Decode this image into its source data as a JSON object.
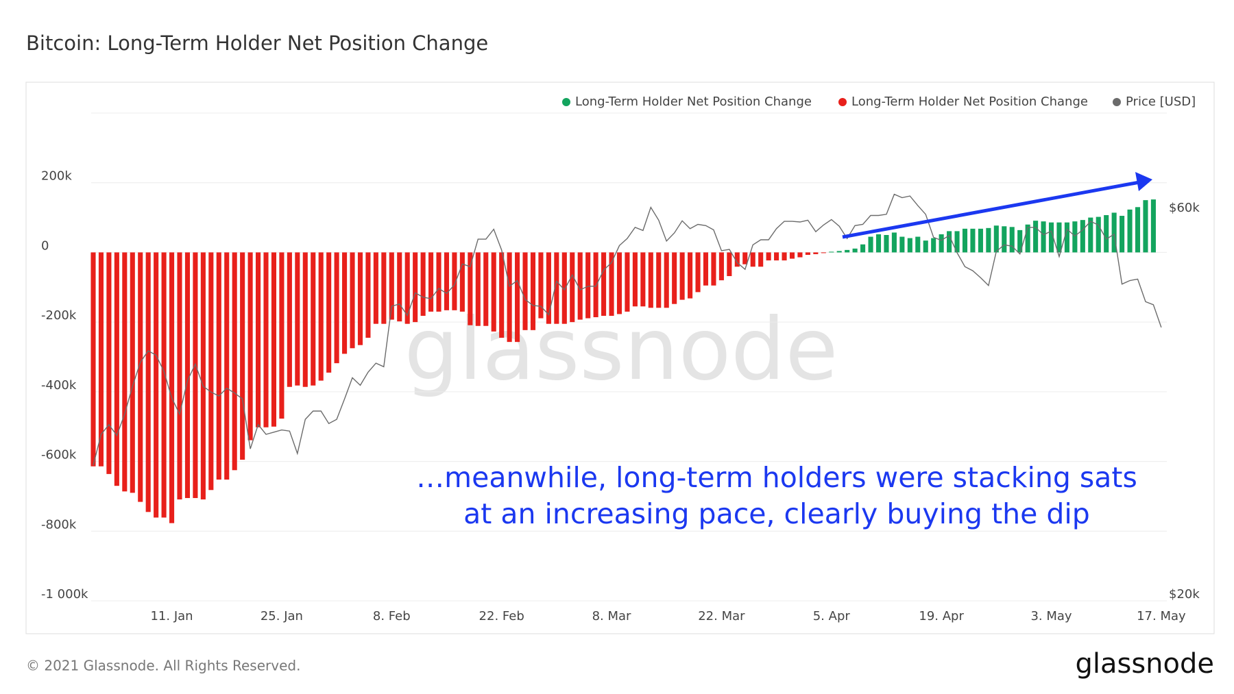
{
  "header": {
    "title": "Bitcoin: Long-Term Holder Net Position Change"
  },
  "chart_data": {
    "type": "bar",
    "x": [
      "1. Jan",
      "2. Jan",
      "3. Jan",
      "4. Jan",
      "5. Jan",
      "6. Jan",
      "7. Jan",
      "8. Jan",
      "9. Jan",
      "10. Jan",
      "11. Jan",
      "12. Jan",
      "13. Jan",
      "14. Jan",
      "15. Jan",
      "16. Jan",
      "17. Jan",
      "18. Jan",
      "19. Jan",
      "20. Jan",
      "21. Jan",
      "22. Jan",
      "23. Jan",
      "24. Jan",
      "25. Jan",
      "26. Jan",
      "27. Jan",
      "28. Jan",
      "29. Jan",
      "30. Jan",
      "31. Jan",
      "1. Feb",
      "2. Feb",
      "3. Feb",
      "4. Feb",
      "5. Feb",
      "6. Feb",
      "7. Feb",
      "8. Feb",
      "9. Feb",
      "10. Feb",
      "11. Feb",
      "12. Feb",
      "13. Feb",
      "14. Feb",
      "15. Feb",
      "16. Feb",
      "17. Feb",
      "18. Feb",
      "19. Feb",
      "20. Feb",
      "21. Feb",
      "22. Feb",
      "23. Feb",
      "24. Feb",
      "25. Feb",
      "26. Feb",
      "27. Feb",
      "28. Feb",
      "1. Mar",
      "2. Mar",
      "3. Mar",
      "4. Mar",
      "5. Mar",
      "6. Mar",
      "7. Mar",
      "8. Mar",
      "9. Mar",
      "10. Mar",
      "11. Mar",
      "12. Mar",
      "13. Mar",
      "14. Mar",
      "15. Mar",
      "16. Mar",
      "17. Mar",
      "18. Mar",
      "19. Mar",
      "20. Mar",
      "21. Mar",
      "22. Mar",
      "23. Mar",
      "24. Mar",
      "25. Mar",
      "26. Mar",
      "27. Mar",
      "28. Mar",
      "29. Mar",
      "30. Mar",
      "31. Mar",
      "1. Apr",
      "2. Apr",
      "3. Apr",
      "4. Apr",
      "5. Apr",
      "6. Apr",
      "7. Apr",
      "8. Apr",
      "9. Apr",
      "10. Apr",
      "11. Apr",
      "12. Apr",
      "13. Apr",
      "14. Apr",
      "15. Apr",
      "16. Apr",
      "17. Apr",
      "18. Apr",
      "19. Apr",
      "20. Apr",
      "21. Apr",
      "22. Apr",
      "23. Apr",
      "24. Apr",
      "25. Apr",
      "26. Apr",
      "27. Apr",
      "28. Apr",
      "29. Apr",
      "30. Apr",
      "1. May",
      "2. May",
      "3. May",
      "4. May",
      "5. May",
      "6. May",
      "7. May",
      "8. May",
      "9. May",
      "10. May",
      "11. May",
      "12. May",
      "13. May",
      "14. May",
      "15. May",
      "16. May",
      "17. May"
    ],
    "series": [
      {
        "name": "Long-Term Holder Net Position Change",
        "color": "#13a45e",
        "values": [
          null,
          null,
          null,
          null,
          null,
          null,
          null,
          null,
          null,
          null,
          null,
          null,
          null,
          null,
          null,
          null,
          null,
          null,
          null,
          null,
          null,
          null,
          null,
          null,
          null,
          null,
          null,
          null,
          null,
          null,
          null,
          null,
          null,
          null,
          null,
          null,
          null,
          null,
          null,
          null,
          null,
          null,
          null,
          null,
          null,
          null,
          null,
          null,
          null,
          null,
          null,
          null,
          null,
          null,
          null,
          null,
          null,
          null,
          null,
          null,
          null,
          null,
          null,
          null,
          null,
          null,
          null,
          null,
          null,
          null,
          null,
          null,
          null,
          null,
          null,
          null,
          null,
          null,
          null,
          null,
          null,
          null,
          null,
          null,
          null,
          null,
          null,
          null,
          null,
          null,
          null,
          null,
          null,
          null,
          2000,
          4000,
          7000,
          11000,
          23000,
          45000,
          52000,
          50000,
          57000,
          45000,
          41000,
          45000,
          34000,
          41000,
          52000,
          61000,
          61000,
          68000,
          68000,
          68000,
          70000,
          77000,
          75000,
          73000,
          64000,
          80000,
          91000,
          89000,
          86000,
          86000,
          86000,
          89000,
          93000,
          100000,
          102000,
          107000,
          114000,
          105000,
          123000,
          130000,
          150000,
          152000,
          null
        ]
      },
      {
        "name": "Long-Term Holder Net Position Change",
        "color": "#e8201b",
        "values": [
          -614000,
          -614000,
          -636000,
          -670000,
          -686000,
          -690000,
          -716000,
          -745000,
          -761000,
          -761000,
          -777000,
          -709000,
          -705000,
          -705000,
          -709000,
          -682000,
          -652000,
          -652000,
          -625000,
          -595000,
          -539000,
          -502000,
          -502000,
          -500000,
          -477000,
          -386000,
          -382000,
          -386000,
          -382000,
          -368000,
          -345000,
          -318000,
          -291000,
          -275000,
          -266000,
          -245000,
          -205000,
          -205000,
          -193000,
          -198000,
          -205000,
          -200000,
          -182000,
          -170000,
          -170000,
          -166000,
          -166000,
          -170000,
          -209000,
          -211000,
          -211000,
          -227000,
          -245000,
          -257000,
          -257000,
          -223000,
          -223000,
          -189000,
          -205000,
          -205000,
          -205000,
          -200000,
          -193000,
          -189000,
          -186000,
          -182000,
          -182000,
          -177000,
          -170000,
          -155000,
          -155000,
          -159000,
          -159000,
          -159000,
          -148000,
          -136000,
          -132000,
          -114000,
          -95000,
          -95000,
          -80000,
          -68000,
          -41000,
          -34000,
          -41000,
          -41000,
          -23000,
          -23000,
          -23000,
          -18000,
          -14000,
          -7000,
          -5000,
          -2000,
          null,
          null,
          null,
          null,
          null,
          null,
          null,
          null,
          null,
          null,
          null,
          null,
          null,
          null,
          null,
          null,
          null,
          null,
          null,
          null,
          null,
          null,
          null,
          null,
          null,
          null,
          null,
          null,
          null,
          null,
          null,
          null,
          null,
          null,
          null,
          null,
          null,
          null,
          null,
          null,
          null,
          null,
          null
        ]
      },
      {
        "name": "Price [USD]",
        "color": "#6b6b6b",
        "type": "line",
        "axis": "y2",
        "values": [
          29400,
          32100,
          33000,
          32000,
          34000,
          36800,
          39400,
          40700,
          40200,
          38400,
          35600,
          34000,
          37400,
          39200,
          36800,
          36200,
          35800,
          36600,
          36100,
          35500,
          30800,
          33000,
          32100,
          32300,
          32500,
          32400,
          30400,
          33500,
          34300,
          34300,
          33100,
          33500,
          35500,
          37700,
          36900,
          38300,
          39300,
          38900,
          46200,
          46500,
          45000,
          48000,
          47400,
          47200,
          48600,
          47900,
          49100,
          52100,
          51700,
          55900,
          55900,
          57500,
          54200,
          48900,
          49700,
          47100,
          46300,
          46200,
          45100,
          49600,
          48400,
          50500,
          48400,
          48900,
          48900,
          51200,
          52300,
          54900,
          56000,
          57800,
          57300,
          61200,
          59000,
          55600,
          56900,
          58900,
          57600,
          58300,
          58100,
          57400,
          54100,
          54300,
          52300,
          51300,
          55000,
          55800,
          55800,
          57600,
          58800,
          58800,
          58700,
          59000,
          57100,
          58200,
          59100,
          58000,
          56000,
          58100,
          58300,
          59800,
          59800,
          60000,
          63500,
          62900,
          63200,
          61500,
          60000,
          56200,
          55700,
          56500,
          53800,
          51700,
          51100,
          50100,
          49000,
          54000,
          55000,
          54800,
          53600,
          57800,
          57800,
          56600,
          57200,
          53200,
          57500,
          56400,
          57400,
          58800,
          58200,
          55900,
          56700,
          49200,
          49700,
          49900,
          46800,
          46400,
          43500
        ]
      }
    ],
    "xticks": [
      "11. Jan",
      "25. Jan",
      "8. Feb",
      "22. Feb",
      "8. Mar",
      "22. Mar",
      "5. Apr",
      "19. Apr",
      "3. May",
      "17. May"
    ],
    "ylim": [
      -1000000,
      400000
    ],
    "yticks": [
      {
        "value": 200000,
        "label": "200k"
      },
      0,
      {
        "value": -200000,
        "label": "-200k"
      },
      {
        "value": -400000,
        "label": "-400k"
      },
      {
        "value": -600000,
        "label": "-600k"
      },
      {
        "value": -800000,
        "label": "-800k"
      },
      {
        "value": -1000000,
        "label": "-1 000k"
      }
    ],
    "y2lim": [
      20000,
      80000
    ],
    "y2log": true,
    "y2ticks": [
      {
        "value": 60000,
        "label": "$60k"
      },
      {
        "value": 20000,
        "label": "$20k"
      }
    ],
    "grid": true,
    "legend": "top-right",
    "annotations": [
      "…meanwhile, long-term holders were stacking sats",
      "at an increasing pace, clearly buying the dip"
    ],
    "watermark": "glassnode"
  },
  "footer": {
    "copyright": "© 2021 Glassnode. All Rights Reserved.",
    "logo": "glassnode"
  }
}
